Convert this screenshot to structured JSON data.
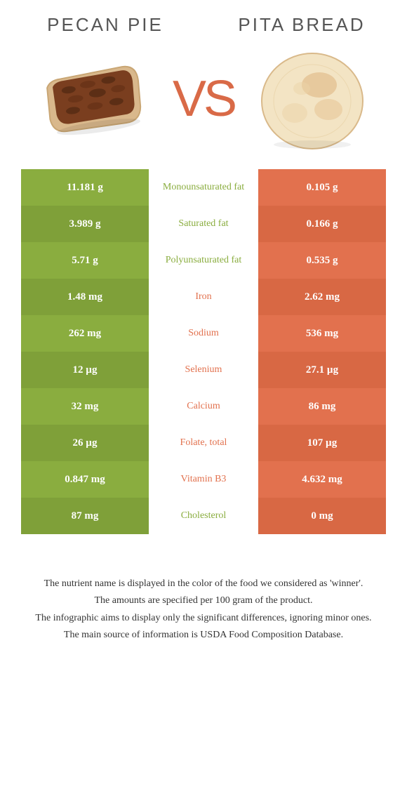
{
  "foodA": {
    "title": "PECAN PIE"
  },
  "foodB": {
    "title": "PITA BREAD"
  },
  "vs": "VS",
  "colors": {
    "green": "#8aad3f",
    "greenDark": "#7fa039",
    "orange": "#e2714e",
    "orangeDark": "#d86844",
    "nutrientGreen": "#8aad3f",
    "nutrientOrange": "#e2714e"
  },
  "rows": [
    {
      "left": "11.181 g",
      "label": "Monounsaturated fat",
      "right": "0.105 g",
      "winner": "A"
    },
    {
      "left": "3.989 g",
      "label": "Saturated fat",
      "right": "0.166 g",
      "winner": "A"
    },
    {
      "left": "5.71 g",
      "label": "Polyunsaturated fat",
      "right": "0.535 g",
      "winner": "A"
    },
    {
      "left": "1.48 mg",
      "label": "Iron",
      "right": "2.62 mg",
      "winner": "B"
    },
    {
      "left": "262 mg",
      "label": "Sodium",
      "right": "536 mg",
      "winner": "B"
    },
    {
      "left": "12 µg",
      "label": "Selenium",
      "right": "27.1 µg",
      "winner": "B"
    },
    {
      "left": "32 mg",
      "label": "Calcium",
      "right": "86 mg",
      "winner": "B"
    },
    {
      "left": "26 µg",
      "label": "Folate, total",
      "right": "107 µg",
      "winner": "B"
    },
    {
      "left": "0.847 mg",
      "label": "Vitamin B3",
      "right": "4.632 mg",
      "winner": "B"
    },
    {
      "left": "87 mg",
      "label": "Cholesterol",
      "right": "0 mg",
      "winner": "A"
    }
  ],
  "footer": {
    "l1": "The nutrient name is displayed in the color of the food we considered as 'winner'.",
    "l2": "The amounts are specified per 100 gram of the product.",
    "l3": "The infographic aims to display only the significant differences, ignoring minor ones.",
    "l4": "The main source of information is USDA Food Composition Database."
  }
}
